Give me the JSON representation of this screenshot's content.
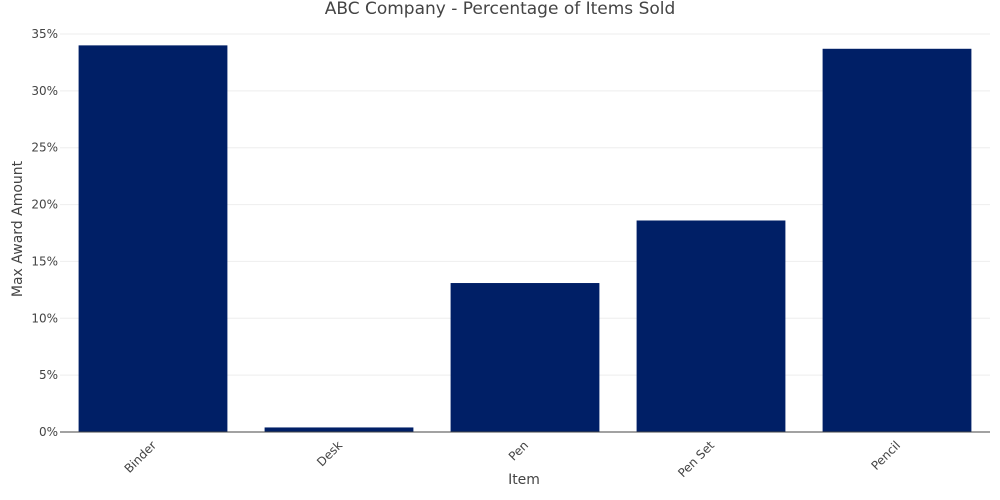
{
  "chart_data": {
    "type": "bar",
    "title": "ABC Company - Percentage of Items Sold",
    "xlabel": "Item",
    "ylabel": "Max Award Amount",
    "categories": [
      "Binder",
      "Desk",
      "Pen",
      "Pen Set",
      "Pencil"
    ],
    "values": [
      34.0,
      0.4,
      13.1,
      18.6,
      33.7
    ],
    "ylim": [
      0,
      35
    ],
    "yticks": [
      0,
      5,
      10,
      15,
      20,
      25,
      30,
      35
    ],
    "ytick_labels": [
      "0%",
      "5%",
      "10%",
      "15%",
      "20%",
      "25%",
      "30%",
      "35%"
    ],
    "bar_color": "#001f66",
    "grid": true,
    "legend": false
  }
}
